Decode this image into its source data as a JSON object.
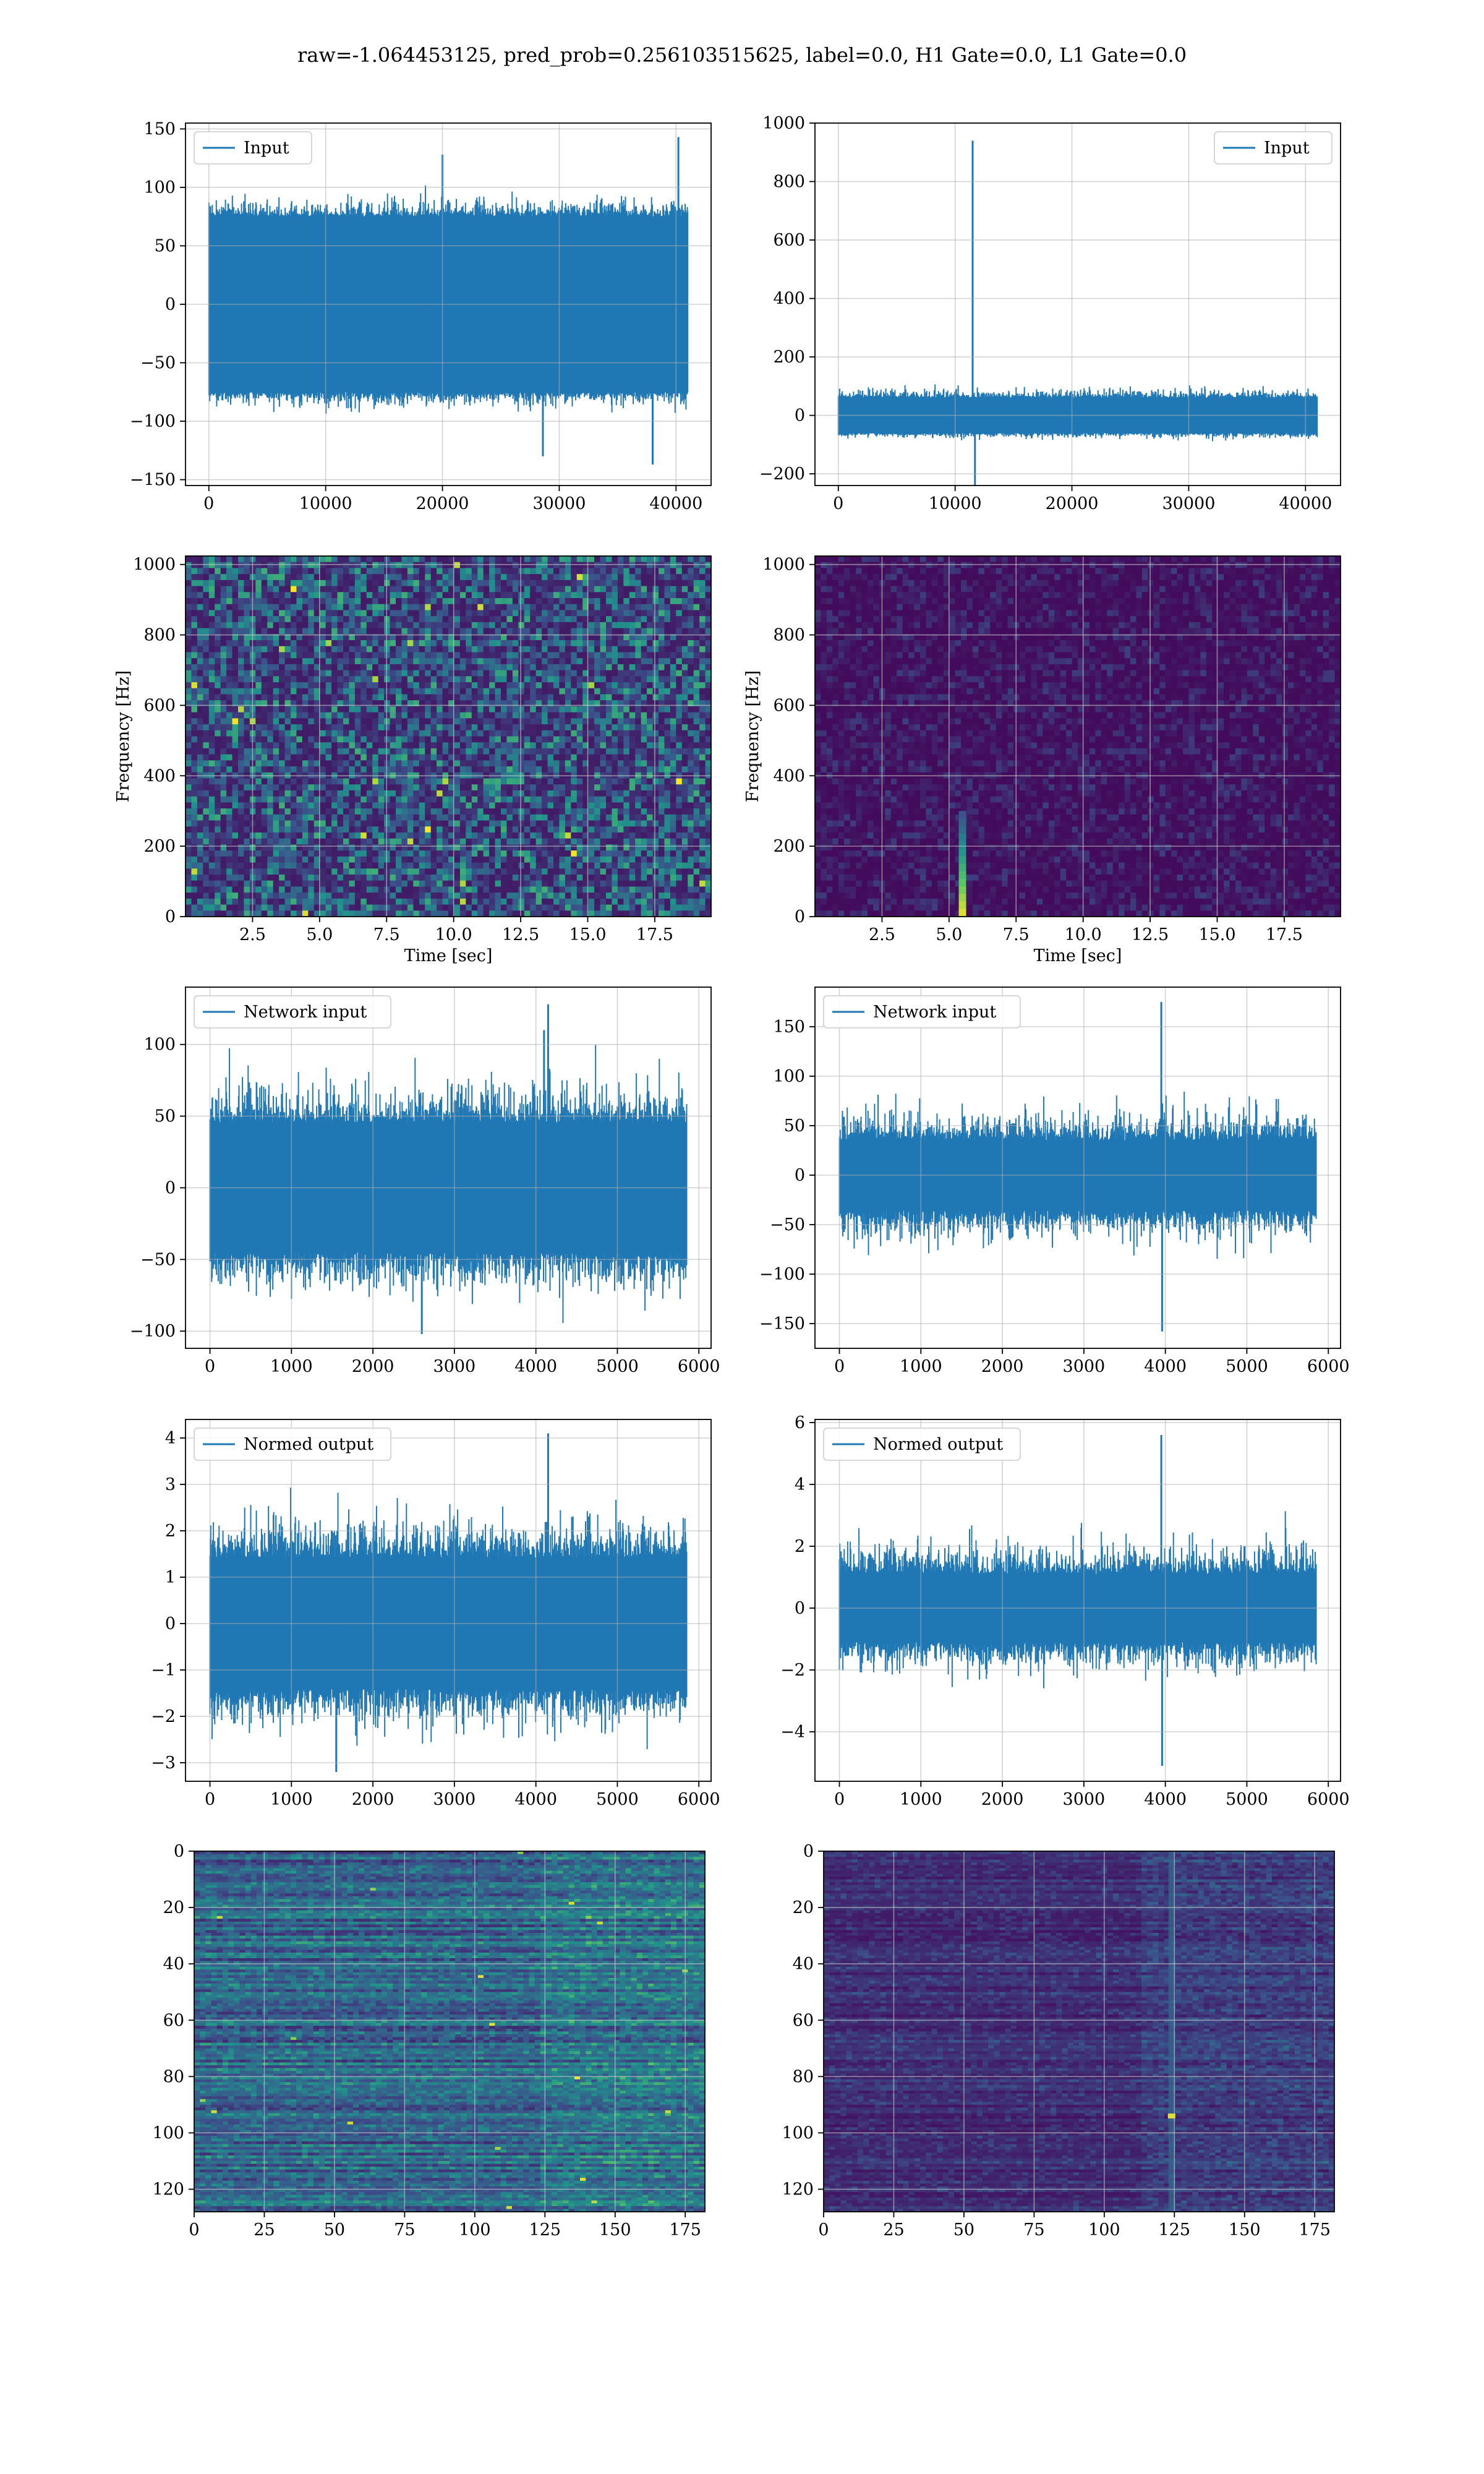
{
  "figure": {
    "suptitle": "raw=-1.064453125, pred_prob=0.256103515625, label=0.0, H1 Gate=0.0, L1 Gate=0.0"
  },
  "colors": {
    "line": "#1f77b4",
    "grid": "#b0b0b0",
    "viridis": [
      "#440154",
      "#3b528b",
      "#21918c",
      "#5ec962",
      "#fde725"
    ]
  },
  "chart_data": [
    {
      "id": "r1c1",
      "type": "line",
      "legend": "Input",
      "legend_loc": "upper-left",
      "xlim": [
        -2000,
        43000
      ],
      "ylim": [
        -155,
        155
      ],
      "xticks": [
        0,
        10000,
        20000,
        30000,
        40000
      ],
      "xtick_labels": [
        "0",
        "10000",
        "20000",
        "30000",
        "40000"
      ],
      "yticks": [
        -150,
        -100,
        -50,
        0,
        50,
        100,
        150
      ],
      "ytick_labels": [
        "−150",
        "−100",
        "−50",
        "0",
        "50",
        "100",
        "150"
      ],
      "xlabel": "",
      "ylabel": "",
      "signal": {
        "x_range": [
          0,
          41000
        ],
        "envelope": [
          [
            -75,
            75
          ],
          [
            -100,
            105
          ]
        ],
        "spikes": [
          {
            "x": 40200,
            "y": 143
          },
          {
            "x": 38000,
            "y": -137
          },
          {
            "x": 28600,
            "y": -130
          },
          {
            "x": 20000,
            "y": 128
          }
        ]
      }
    },
    {
      "id": "r1c2",
      "type": "line",
      "legend": "Input",
      "legend_loc": "upper-right",
      "xlim": [
        -2000,
        43000
      ],
      "ylim": [
        -240,
        1000
      ],
      "xticks": [
        0,
        10000,
        20000,
        30000,
        40000
      ],
      "xtick_labels": [
        "0",
        "10000",
        "20000",
        "30000",
        "40000"
      ],
      "yticks": [
        -200,
        0,
        200,
        400,
        600,
        800,
        1000
      ],
      "ytick_labels": [
        "−200",
        "0",
        "200",
        "400",
        "600",
        "800",
        "1000"
      ],
      "xlabel": "",
      "ylabel": "",
      "signal": {
        "x_range": [
          0,
          41000
        ],
        "envelope": [
          [
            -60,
            60
          ],
          [
            -95,
            120
          ]
        ],
        "spikes": [
          {
            "x": 11500,
            "y": 940
          },
          {
            "x": 11700,
            "y": -240
          }
        ]
      }
    },
    {
      "id": "r2c1",
      "type": "heatmap",
      "xlabel": "Time [sec]",
      "ylabel": "Frequency [Hz]",
      "xlim": [
        0,
        19.6
      ],
      "ylim": [
        0,
        1024
      ],
      "xticks": [
        2.5,
        5.0,
        7.5,
        10.0,
        12.5,
        15.0,
        17.5
      ],
      "xtick_labels": [
        "2.5",
        "5.0",
        "7.5",
        "10.0",
        "12.5",
        "15.0",
        "17.5"
      ],
      "yticks": [
        0,
        200,
        400,
        600,
        800,
        1000
      ],
      "ytick_labels": [
        "0",
        "200",
        "400",
        "600",
        "800",
        "1000"
      ],
      "texture": "speckled"
    },
    {
      "id": "r2c2",
      "type": "heatmap",
      "xlabel": "Time [sec]",
      "ylabel": "Frequency [Hz]",
      "xlim": [
        0,
        19.6
      ],
      "ylim": [
        0,
        1024
      ],
      "xticks": [
        2.5,
        5.0,
        7.5,
        10.0,
        12.5,
        15.0,
        17.5
      ],
      "xtick_labels": [
        "2.5",
        "5.0",
        "7.5",
        "10.0",
        "12.5",
        "15.0",
        "17.5"
      ],
      "yticks": [
        0,
        200,
        400,
        600,
        800,
        1000
      ],
      "ytick_labels": [
        "0",
        "200",
        "400",
        "600",
        "800",
        "1000"
      ],
      "texture": "dark",
      "glitch": {
        "time": 5.5,
        "freq_top": 300
      }
    },
    {
      "id": "r3c1",
      "type": "line",
      "legend": "Network input",
      "legend_loc": "upper-left",
      "xlim": [
        -300,
        6150
      ],
      "ylim": [
        -112,
        140
      ],
      "xticks": [
        0,
        1000,
        2000,
        3000,
        4000,
        5000,
        6000
      ],
      "xtick_labels": [
        "0",
        "1000",
        "2000",
        "3000",
        "4000",
        "5000",
        "6000"
      ],
      "yticks": [
        -100,
        -50,
        0,
        50,
        100
      ],
      "ytick_labels": [
        "−100",
        "−50",
        "0",
        "50",
        "100"
      ],
      "xlabel": "",
      "ylabel": "",
      "signal": {
        "x_range": [
          0,
          5850
        ],
        "envelope": [
          [
            -45,
            45
          ],
          [
            -100,
            104
          ]
        ],
        "spikes": [
          {
            "x": 4150,
            "y": 128
          },
          {
            "x": 4100,
            "y": 110
          },
          {
            "x": 2600,
            "y": -102
          }
        ]
      }
    },
    {
      "id": "r3c2",
      "type": "line",
      "legend": "Network input",
      "legend_loc": "upper-left",
      "xlim": [
        -300,
        6150
      ],
      "ylim": [
        -175,
        190
      ],
      "xticks": [
        0,
        1000,
        2000,
        3000,
        4000,
        5000,
        6000
      ],
      "xtick_labels": [
        "0",
        "1000",
        "2000",
        "3000",
        "4000",
        "5000",
        "6000"
      ],
      "yticks": [
        -150,
        -100,
        -50,
        0,
        50,
        100,
        150
      ],
      "ytick_labels": [
        "−150",
        "−100",
        "−50",
        "0",
        "50",
        "100",
        "150"
      ],
      "xlabel": "",
      "ylabel": "",
      "signal": {
        "x_range": [
          0,
          5850
        ],
        "envelope": [
          [
            -35,
            35
          ],
          [
            -100,
            100
          ]
        ],
        "spikes": [
          {
            "x": 3950,
            "y": 175
          },
          {
            "x": 3960,
            "y": -158
          }
        ]
      }
    },
    {
      "id": "r4c1",
      "type": "line",
      "legend": "Normed output",
      "legend_loc": "upper-left",
      "xlim": [
        -300,
        6150
      ],
      "ylim": [
        -3.4,
        4.4
      ],
      "xticks": [
        0,
        1000,
        2000,
        3000,
        4000,
        5000,
        6000
      ],
      "xtick_labels": [
        "0",
        "1000",
        "2000",
        "3000",
        "4000",
        "5000",
        "6000"
      ],
      "yticks": [
        -3,
        -2,
        -1,
        0,
        1,
        2,
        3,
        4
      ],
      "ytick_labels": [
        "−3",
        "−2",
        "−1",
        "0",
        "1",
        "2",
        "3",
        "4"
      ],
      "xlabel": "",
      "ylabel": "",
      "signal": {
        "x_range": [
          0,
          5850
        ],
        "envelope": [
          [
            -1.4,
            1.4
          ],
          [
            -3.1,
            3.3
          ]
        ],
        "spikes": [
          {
            "x": 4150,
            "y": 4.1
          },
          {
            "x": 1550,
            "y": -3.2
          }
        ]
      }
    },
    {
      "id": "r4c2",
      "type": "line",
      "legend": "Normed output",
      "legend_loc": "upper-left",
      "xlim": [
        -300,
        6150
      ],
      "ylim": [
        -5.6,
        6.1
      ],
      "xticks": [
        0,
        1000,
        2000,
        3000,
        4000,
        5000,
        6000
      ],
      "xtick_labels": [
        "0",
        "1000",
        "2000",
        "3000",
        "4000",
        "5000",
        "6000"
      ],
      "yticks": [
        -4,
        -2,
        0,
        2,
        4,
        6
      ],
      "ytick_labels": [
        "−4",
        "−2",
        "0",
        "2",
        "4",
        "6"
      ],
      "xlabel": "",
      "ylabel": "",
      "signal": {
        "x_range": [
          0,
          5850
        ],
        "envelope": [
          [
            -1.1,
            1.1
          ],
          [
            -3.0,
            3.2
          ]
        ],
        "spikes": [
          {
            "x": 3950,
            "y": 5.6
          },
          {
            "x": 3960,
            "y": -5.1
          }
        ]
      }
    },
    {
      "id": "r5c1",
      "type": "heatmap",
      "xlabel": "",
      "ylabel": "",
      "xlim": [
        0,
        182
      ],
      "ylim": [
        128,
        0
      ],
      "xticks": [
        0,
        25,
        50,
        75,
        100,
        125,
        150,
        175
      ],
      "xtick_labels": [
        "0",
        "25",
        "50",
        "75",
        "100",
        "125",
        "150",
        "175"
      ],
      "yticks": [
        0,
        20,
        40,
        60,
        80,
        100,
        120
      ],
      "ytick_labels": [
        "0",
        "20",
        "40",
        "60",
        "80",
        "100",
        "120"
      ],
      "texture": "streaks"
    },
    {
      "id": "r5c2",
      "type": "heatmap",
      "xlabel": "",
      "ylabel": "",
      "xlim": [
        0,
        182
      ],
      "ylim": [
        128,
        0
      ],
      "xticks": [
        0,
        25,
        50,
        75,
        100,
        125,
        150,
        175
      ],
      "xtick_labels": [
        "0",
        "25",
        "50",
        "75",
        "100",
        "125",
        "150",
        "175"
      ],
      "yticks": [
        0,
        20,
        40,
        60,
        80,
        100,
        120
      ],
      "ytick_labels": [
        "0",
        "20",
        "40",
        "60",
        "80",
        "100",
        "120"
      ],
      "texture": "streaks_dark",
      "glitch": {
        "column": 124,
        "hot_row": 94
      }
    }
  ]
}
